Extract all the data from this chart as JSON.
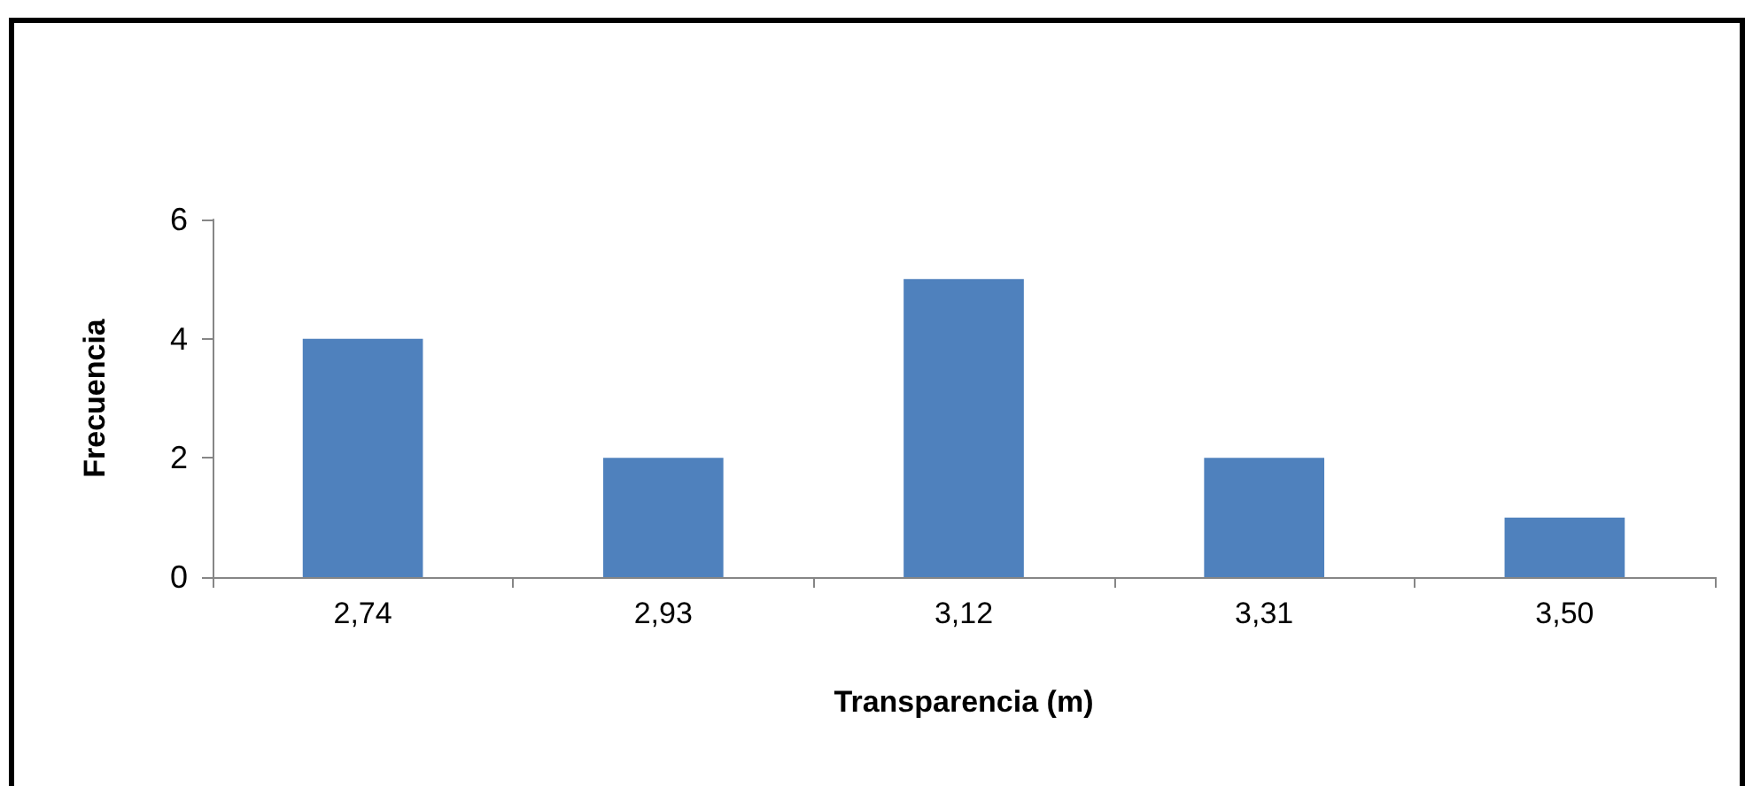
{
  "chart_data": {
    "type": "bar",
    "xlabel": "Transparencia (m)",
    "ylabel": "Frecuencia",
    "categories": [
      "2,74",
      "2,93",
      "3,12",
      "3,31",
      "3,50"
    ],
    "values": [
      4,
      2,
      5,
      2,
      1
    ],
    "color": "#4f81bd",
    "ylim": [
      0,
      6
    ],
    "yticks": [
      0,
      2,
      4,
      6
    ],
    "grid": false
  }
}
